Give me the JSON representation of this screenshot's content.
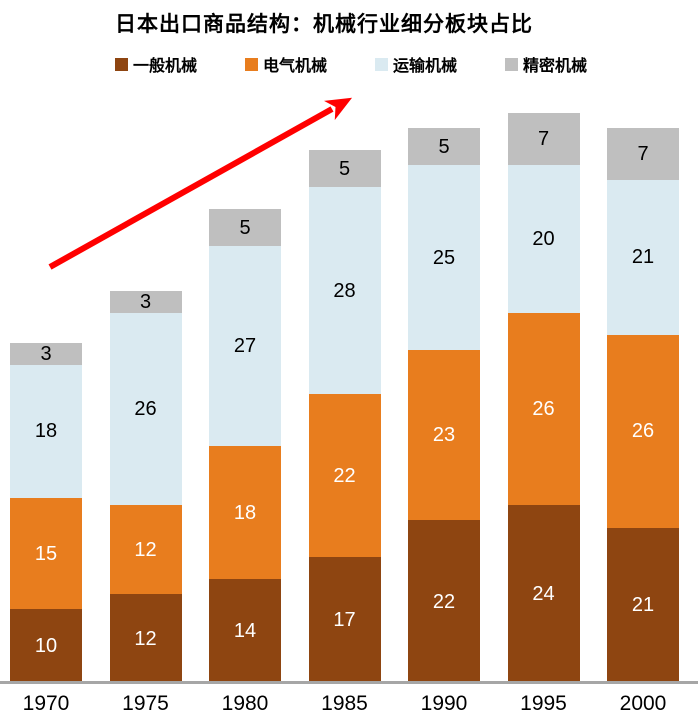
{
  "title": "日本出口商品结构：机械行业细分板块占比",
  "chart_data": {
    "type": "bar",
    "subtype": "stacked-vertical",
    "title": "日本出口商品结构：机械行业细分板块占比",
    "categories": [
      "1970",
      "1975",
      "1980",
      "1985",
      "1990",
      "1995",
      "2000"
    ],
    "series": [
      {
        "name": "一般机械",
        "color": "#8E4511",
        "label_color": "#FFFFFF",
        "values": [
          10,
          12,
          14,
          17,
          22,
          24,
          21
        ]
      },
      {
        "name": "电气机械",
        "color": "#E87D1E",
        "label_color": "#FFFFFF",
        "values": [
          15,
          12,
          18,
          22,
          23,
          26,
          26
        ]
      },
      {
        "name": "运输机械",
        "color": "#DAEAF1",
        "label_color": "#000000",
        "values": [
          18,
          26,
          27,
          28,
          25,
          20,
          21
        ]
      },
      {
        "name": "精密机械",
        "color": "#BFBFBF",
        "label_color": "#000000",
        "values": [
          3,
          3,
          5,
          5,
          5,
          7,
          7
        ]
      }
    ],
    "stack_order": "bottom-to-top",
    "value_labels": "on-segments",
    "legend_position": "top",
    "grid": "off",
    "axis_line_color": "#A6A6A6",
    "annotation": {
      "type": "trend-arrow-up",
      "color": "#FF0000"
    }
  }
}
